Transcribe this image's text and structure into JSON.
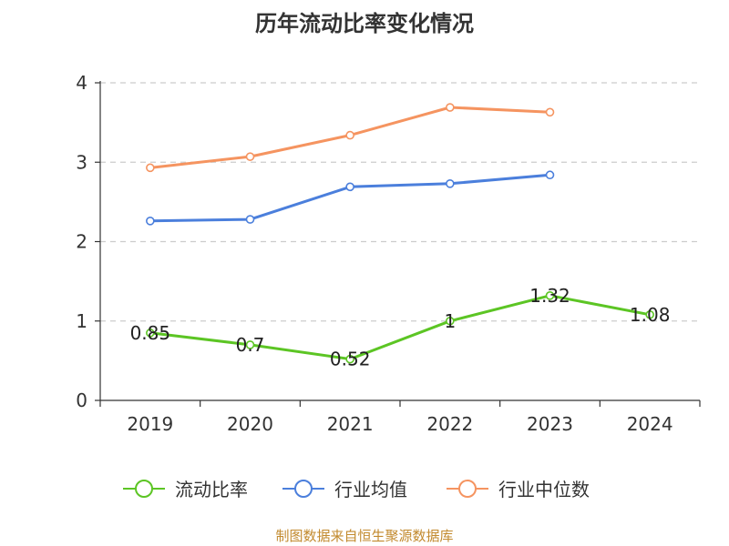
{
  "chart_data": {
    "type": "line",
    "title": "历年流动比率变化情况",
    "categories": [
      "2019",
      "2020",
      "2021",
      "2022",
      "2023",
      "2024"
    ],
    "ylim": [
      0,
      4
    ],
    "yticks": [
      0,
      1,
      2,
      3,
      4
    ],
    "grid": true,
    "legend_position": "bottom",
    "series": [
      {
        "name": "流动比率",
        "color": "#5cc524",
        "values": [
          0.85,
          0.7,
          0.52,
          1,
          1.32,
          1.08
        ],
        "labels": [
          "0.85",
          "0.7",
          "0.52",
          "1",
          "1.32",
          "1.08"
        ]
      },
      {
        "name": "行业均值",
        "color": "#4b7fdc",
        "values": [
          2.26,
          2.28,
          2.69,
          2.73,
          2.84,
          null
        ]
      },
      {
        "name": "行业中位数",
        "color": "#f59460",
        "values": [
          2.93,
          3.07,
          3.34,
          3.69,
          3.63,
          null
        ]
      }
    ]
  },
  "source": "制图数据来自恒生聚源数据库"
}
